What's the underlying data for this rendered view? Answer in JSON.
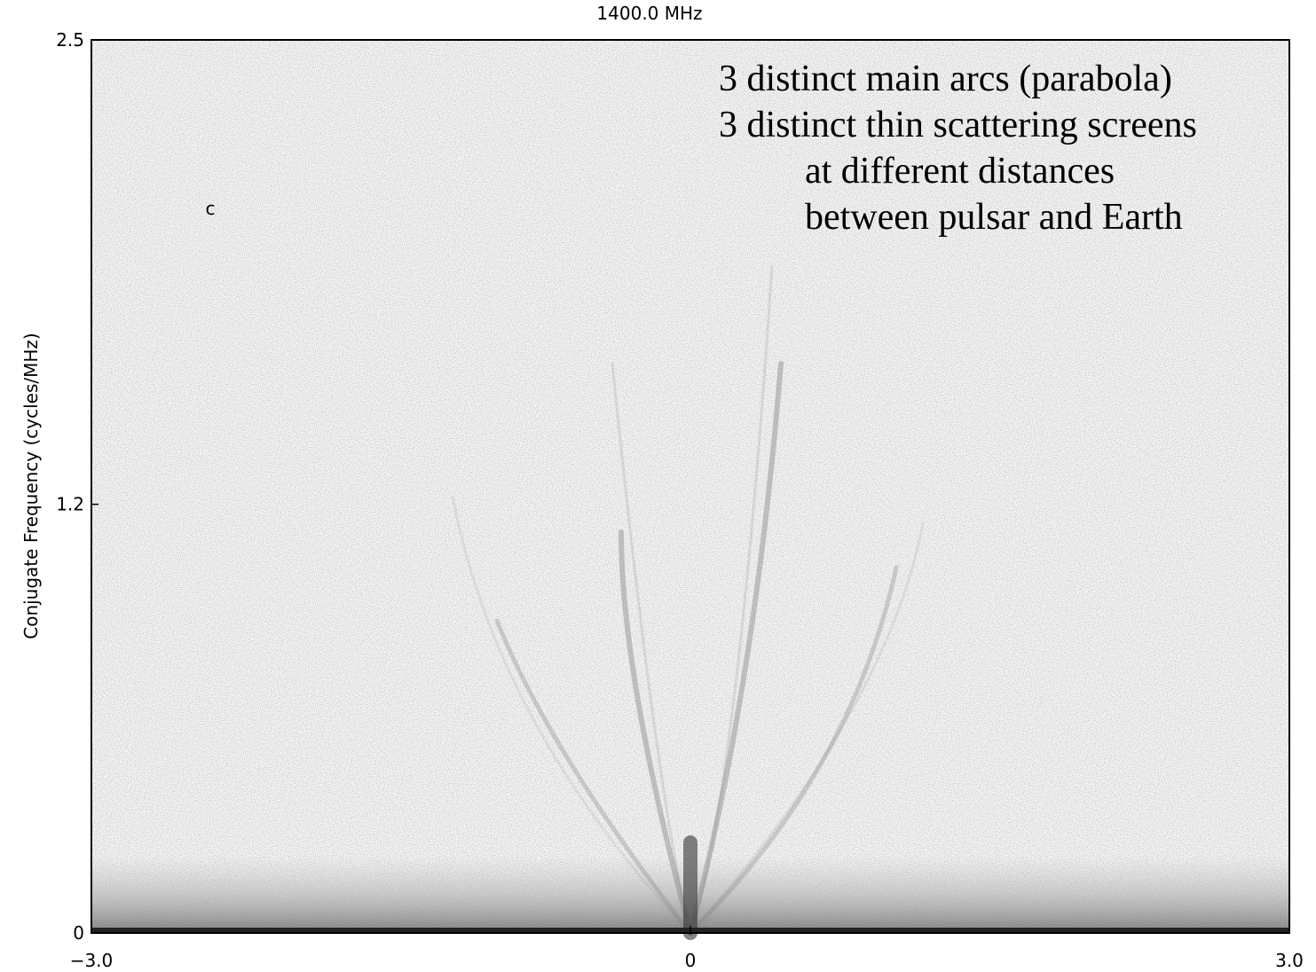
{
  "chart_data": {
    "type": "image-plot",
    "title": "1400.0 MHz",
    "y_label": "Conjugate Frequency (cycles/MHz)",
    "xlim": [
      -3,
      3
    ],
    "xticks": [
      {
        "value": -3,
        "label": "−3.0"
      },
      0,
      {
        "value": 3,
        "label": "3.0"
      }
    ],
    "ylim": [
      0,
      2.5
    ],
    "yticks": [
      0,
      1.2,
      2.5
    ],
    "marker_label": "c",
    "annotations": [
      "3 distinct main arcs (parabola)",
      "3 distinct thin scattering screens",
      "at different distances",
      "between pulsar and Earth"
    ]
  }
}
